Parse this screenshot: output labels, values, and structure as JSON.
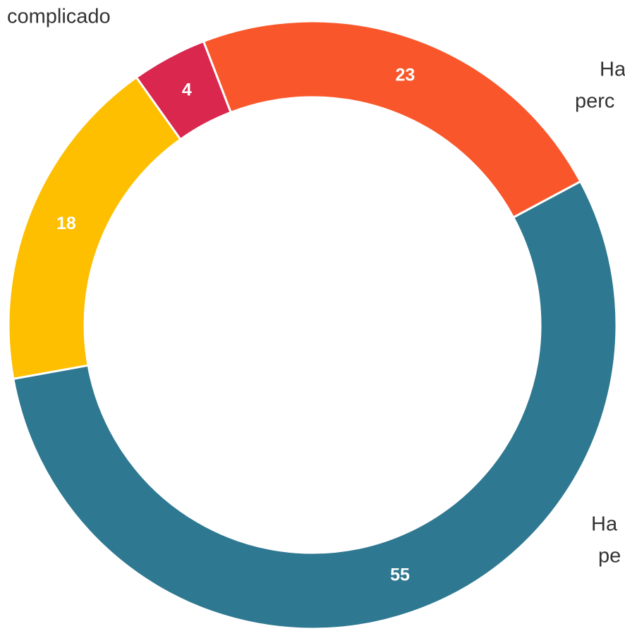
{
  "chart_data": {
    "type": "donut",
    "categories": [
      [
        "Ha",
        "pe"
      ],
      null,
      [
        "complicado"
      ],
      [
        "Ha",
        "perc"
      ]
    ],
    "values": [
      55,
      18,
      4,
      23
    ],
    "colors": [
      "#2e7891",
      "#fdbf00",
      "#d9274e",
      "#f9572b"
    ]
  }
}
